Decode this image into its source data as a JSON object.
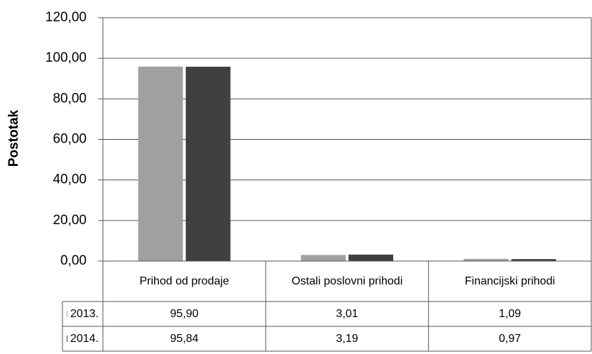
{
  "chart_data": {
    "type": "bar",
    "y_label": "Postotak",
    "categories": [
      "Prihod od prodaje",
      "Ostali poslovni prihodi",
      "Financijski prihodi"
    ],
    "series": [
      {
        "name": "2013.",
        "color": "#a0a0a0",
        "values": [
          95.9,
          3.01,
          1.09
        ],
        "value_labels": [
          "95,90",
          "3,01",
          "1,09"
        ]
      },
      {
        "name": "2014.",
        "color": "#404040",
        "values": [
          95.84,
          3.19,
          0.97
        ],
        "value_labels": [
          "95,84",
          "3,19",
          "0,97"
        ]
      }
    ],
    "ylim": [
      0,
      120
    ],
    "yticks": [
      {
        "value": 0,
        "label": "0,00"
      },
      {
        "value": 20,
        "label": "20,00"
      },
      {
        "value": 40,
        "label": "40,00"
      },
      {
        "value": 60,
        "label": "60,00"
      },
      {
        "value": 80,
        "label": "80,00"
      },
      {
        "value": 100,
        "label": "100,00"
      },
      {
        "value": 120,
        "label": "120,00"
      }
    ],
    "grid": true
  }
}
